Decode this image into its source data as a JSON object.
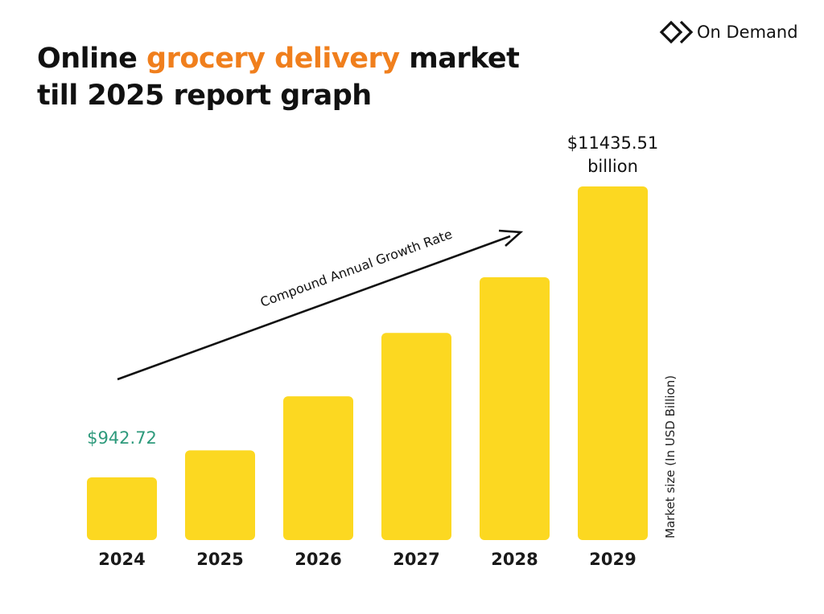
{
  "brand": {
    "name": "On Demand",
    "logo_icon": "double-chevron-icon"
  },
  "title": {
    "line1_before": "Online ",
    "line1_accent": "grocery delivery",
    "line1_after": " market",
    "line2": "till 2025 report graph"
  },
  "colors": {
    "bar": "#fcd821",
    "accent": "#f07f1d",
    "first_label": "#2e9a7c",
    "text": "#111111"
  },
  "chart_data": {
    "type": "bar",
    "categories": [
      "2024",
      "2025",
      "2026",
      "2027",
      "2028",
      "2029"
    ],
    "values": [
      942.72,
      2900,
      4650,
      6700,
      8500,
      11435.51
    ],
    "ylabel": "Market size (In USD Billion)",
    "ylim": [
      0,
      12000
    ],
    "grid": false,
    "legend": "none",
    "data_labels": [
      {
        "category": "2024",
        "lines": [
          "$942.72"
        ]
      },
      {
        "category": "2029",
        "lines": [
          "$11435.51",
          "billion"
        ]
      }
    ],
    "annotation": {
      "text": "Compound Annual Growth Rate",
      "type": "arrow"
    }
  }
}
